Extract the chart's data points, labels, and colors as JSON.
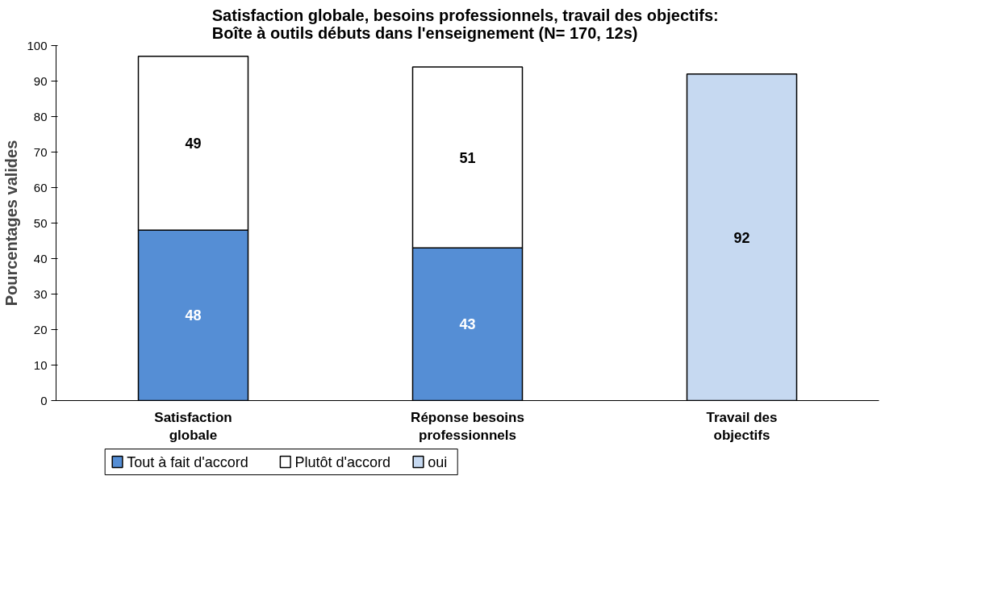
{
  "chart_data": {
    "type": "bar",
    "stacked": true,
    "title": " Satisfaction globale, besoins professionnels, travail des objectifs:\nBoîte à outils débuts dans l'enseignement (N= 170, 12s)",
    "ylabel": "Pourcentages valides",
    "categories": [
      "Satisfaction globale",
      "Réponse besoins professionnels",
      "Travail des objectifs"
    ],
    "series": [
      {
        "name": "Tout à fait d'accord",
        "color": "#558ed5",
        "values": [
          48,
          43,
          null
        ]
      },
      {
        "name": "Plutôt d'accord",
        "color": "#ffffff",
        "values": [
          49,
          51,
          null
        ]
      },
      {
        "name": "oui",
        "color": "#c6d9f1",
        "values": [
          null,
          null,
          92
        ]
      }
    ],
    "ylim": [
      0,
      100
    ],
    "yticks": [
      0,
      10,
      20,
      30,
      40,
      50,
      60,
      70,
      80,
      90,
      100
    ],
    "data_labels": true,
    "legend": "bottom left",
    "grid": false
  }
}
